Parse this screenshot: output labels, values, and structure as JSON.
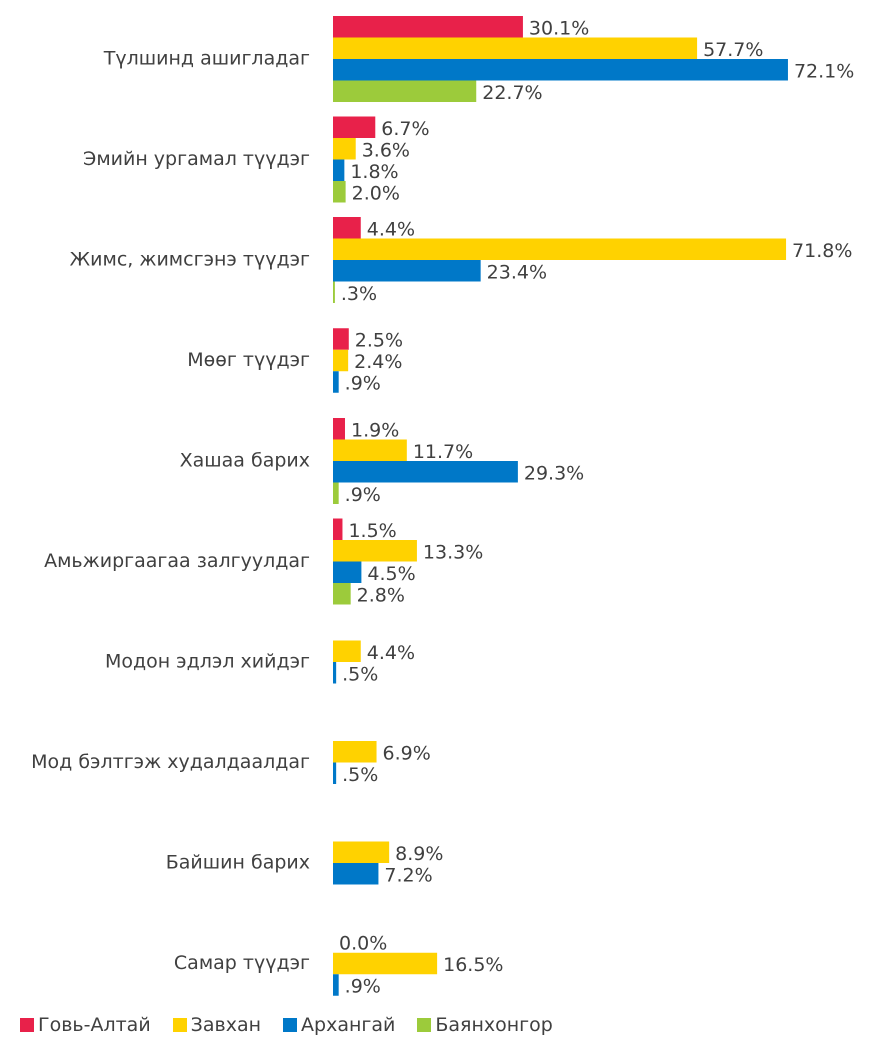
{
  "chart_data": {
    "type": "bar",
    "orientation": "horizontal",
    "categories": [
      "Түлшинд ашигладаг",
      "Эмийн ургамал түүдэг",
      "Жимс, жимсгэнэ түүдэг",
      "Мөөг түүдэг",
      "Хашаа барих",
      "Амьжиргаагаа залгуулдаг",
      "Модон эдлэл хийдэг",
      "Мод бэлтгэж худалдаалдаг",
      "Байшин барих",
      "Самар түүдэг"
    ],
    "series": [
      {
        "name": "Говь-Алтай",
        "color": "#e8214a",
        "values": [
          30.1,
          6.7,
          4.4,
          2.5,
          1.9,
          1.5,
          null,
          null,
          null,
          0.0
        ],
        "value_labels": [
          "30.1%",
          "6.7%",
          "4.4%",
          "2.5%",
          "1.9%",
          "1.5%",
          null,
          null,
          null,
          "0.0%"
        ]
      },
      {
        "name": "Завхан",
        "color": "#ffd200",
        "values": [
          57.7,
          3.6,
          71.8,
          2.4,
          11.7,
          13.3,
          4.4,
          6.9,
          8.9,
          16.5
        ],
        "value_labels": [
          "57.7%",
          "3.6%",
          "71.8%",
          "2.4%",
          "11.7%",
          "13.3%",
          "4.4%",
          "6.9%",
          "8.9%",
          "16.5%"
        ]
      },
      {
        "name": "Архангай",
        "color": "#0078c8",
        "values": [
          72.1,
          1.8,
          23.4,
          0.9,
          29.3,
          4.5,
          0.5,
          0.5,
          7.2,
          0.9
        ],
        "value_labels": [
          "72.1%",
          "1.8%",
          "23.4%",
          ".9%",
          "29.3%",
          "4.5%",
          ".5%",
          ".5%",
          "7.2%",
          ".9%"
        ]
      },
      {
        "name": "Баянхонгор",
        "color": "#9ccb3b",
        "values": [
          22.7,
          2.0,
          0.3,
          null,
          0.9,
          2.8,
          null,
          null,
          null,
          null
        ],
        "value_labels": [
          "22.7%",
          "2.0%",
          ".3%",
          null,
          ".9%",
          "2.8%",
          null,
          null,
          null,
          null
        ]
      }
    ],
    "legend": "bottom"
  }
}
